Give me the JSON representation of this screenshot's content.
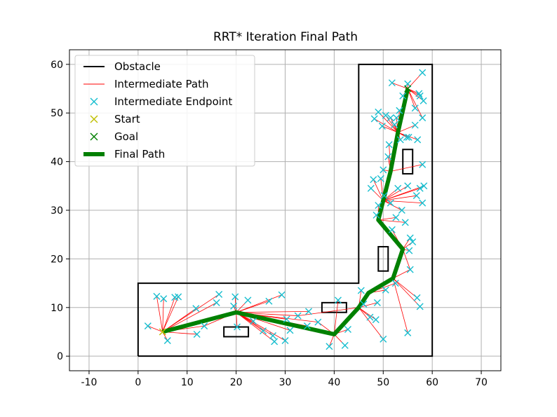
{
  "chart_data": {
    "type": "line",
    "title": "RRT* Iteration Final Path",
    "xlabel": "",
    "ylabel": "",
    "xlim": [
      -14,
      74
    ],
    "ylim": [
      -3,
      63
    ],
    "xticks": [
      -10,
      0,
      10,
      20,
      30,
      40,
      50,
      60,
      70
    ],
    "yticks": [
      0,
      10,
      20,
      30,
      40,
      50,
      60
    ],
    "grid": true,
    "legend_position": "top-left",
    "colors": {
      "obstacle": "#000000",
      "intermediate_path": "#ff0000",
      "intermediate_endpoint": "#17becf",
      "start": "#bfbf00",
      "goal": "#008000",
      "final_path": "#008000",
      "grid": "#b0b0b0"
    },
    "legend": [
      {
        "label": "Obstacle",
        "kind": "line",
        "key": "obstacle"
      },
      {
        "label": "Intermediate Path",
        "kind": "thin-line",
        "key": "intermediate_path"
      },
      {
        "label": "Intermediate Endpoint",
        "kind": "marker",
        "key": "intermediate_endpoint"
      },
      {
        "label": "Start",
        "kind": "marker",
        "key": "start"
      },
      {
        "label": "Goal",
        "kind": "marker",
        "key": "goal"
      },
      {
        "label": "Final Path",
        "kind": "thick-line",
        "key": "final_path"
      }
    ],
    "obstacles": {
      "boundary": [
        [
          0,
          0
        ],
        [
          60,
          0
        ],
        [
          60,
          60
        ],
        [
          45,
          60
        ],
        [
          45,
          15
        ],
        [
          0,
          15
        ],
        [
          0,
          0
        ]
      ],
      "rectangles": [
        [
          17.5,
          4,
          5,
          2
        ],
        [
          37.5,
          9,
          5,
          2
        ],
        [
          49,
          17.5,
          2,
          5
        ],
        [
          54,
          37.5,
          2,
          5
        ]
      ]
    },
    "start": [
      5,
      5
    ],
    "goal": [
      55,
      55
    ],
    "final_path": [
      [
        5,
        5
      ],
      [
        20,
        9
      ],
      [
        40,
        4.5
      ],
      [
        45,
        10
      ],
      [
        47,
        13
      ],
      [
        52,
        16
      ],
      [
        54,
        22
      ],
      [
        49,
        28
      ],
      [
        50,
        32
      ],
      [
        51.5,
        38
      ],
      [
        53,
        46
      ],
      [
        55,
        55
      ]
    ],
    "endpoints": [
      [
        2,
        6.2
      ],
      [
        3.8,
        12.3
      ],
      [
        5.2,
        11.8
      ],
      [
        6,
        3.2
      ],
      [
        7.5,
        12.1
      ],
      [
        8.2,
        12.2
      ],
      [
        11.8,
        9.8
      ],
      [
        12,
        4.5
      ],
      [
        13.5,
        6.2
      ],
      [
        16,
        11
      ],
      [
        16.5,
        12.7
      ],
      [
        19.5,
        10.3
      ],
      [
        19.8,
        12.2
      ],
      [
        20.2,
        6
      ],
      [
        22.4,
        11.5
      ],
      [
        23.5,
        7.2
      ],
      [
        25.5,
        5.2
      ],
      [
        26.7,
        11.3
      ],
      [
        27.5,
        4.2
      ],
      [
        27.8,
        3
      ],
      [
        29.3,
        12.6
      ],
      [
        30,
        3.2
      ],
      [
        30.3,
        7.6
      ],
      [
        31,
        5.3
      ],
      [
        32.6,
        8.3
      ],
      [
        34.5,
        6.2
      ],
      [
        34.8,
        9.2
      ],
      [
        36.7,
        7
      ],
      [
        39,
        2
      ],
      [
        40.8,
        11.5
      ],
      [
        42.2,
        2.2
      ],
      [
        42.8,
        5.5
      ],
      [
        45.5,
        13.5
      ],
      [
        46,
        10.7
      ],
      [
        47.3,
        8
      ],
      [
        48.5,
        7.5
      ],
      [
        48.8,
        11
      ],
      [
        50,
        3.5
      ],
      [
        50.5,
        13.6
      ],
      [
        52.5,
        15
      ],
      [
        55,
        4.8
      ],
      [
        55.5,
        17.8
      ],
      [
        55.3,
        21.7
      ],
      [
        56,
        23.5
      ],
      [
        56.9,
        12
      ],
      [
        57.5,
        10.2
      ],
      [
        48.6,
        29
      ],
      [
        49,
        31
      ],
      [
        49.5,
        36.5
      ],
      [
        50,
        38.3
      ],
      [
        50.2,
        33
      ],
      [
        51.5,
        31.5
      ],
      [
        52.6,
        28.5
      ],
      [
        53,
        34.5
      ],
      [
        53.8,
        30
      ],
      [
        54.5,
        27.5
      ],
      [
        55,
        35
      ],
      [
        56.8,
        33
      ],
      [
        57.5,
        34.5
      ],
      [
        58,
        31.5
      ],
      [
        58.3,
        35
      ],
      [
        51,
        41
      ],
      [
        51.2,
        43.5
      ],
      [
        52.3,
        47.6
      ],
      [
        52.7,
        49
      ],
      [
        53.5,
        44.5
      ],
      [
        54,
        53.5
      ],
      [
        54.8,
        45
      ],
      [
        55.2,
        45
      ],
      [
        56.5,
        47.5
      ],
      [
        57,
        44.5
      ],
      [
        57.5,
        53.5
      ],
      [
        58,
        39.4
      ],
      [
        58,
        49
      ],
      [
        48.2,
        48.8
      ],
      [
        49,
        50.2
      ],
      [
        49.8,
        47.3
      ],
      [
        50.5,
        49.5
      ],
      [
        51.5,
        49
      ],
      [
        51.8,
        56.2
      ],
      [
        55,
        56
      ],
      [
        53.3,
        50.5
      ],
      [
        57.3,
        54
      ],
      [
        58,
        58.3
      ],
      [
        58.2,
        52.5
      ],
      [
        47.5,
        34.5
      ],
      [
        48,
        36.3
      ],
      [
        51.8,
        26
      ],
      [
        55.5,
        24.3
      ],
      [
        56.5,
        51
      ]
    ],
    "tree_edges": [
      [
        [
          5,
          5
        ],
        [
          2,
          6.2
        ]
      ],
      [
        [
          5,
          5
        ],
        [
          3.8,
          12.3
        ]
      ],
      [
        [
          5,
          5
        ],
        [
          5.2,
          11.8
        ]
      ],
      [
        [
          5,
          5
        ],
        [
          6,
          3.2
        ]
      ],
      [
        [
          5,
          5
        ],
        [
          7.5,
          12.1
        ]
      ],
      [
        [
          5,
          5
        ],
        [
          8.2,
          12.2
        ]
      ],
      [
        [
          5,
          5
        ],
        [
          12,
          4.5
        ]
      ],
      [
        [
          5,
          5
        ],
        [
          11.8,
          9.8
        ]
      ],
      [
        [
          5,
          5
        ],
        [
          13.5,
          6.2
        ]
      ],
      [
        [
          5,
          5
        ],
        [
          16,
          11
        ]
      ],
      [
        [
          5,
          5
        ],
        [
          16.5,
          12.7
        ]
      ],
      [
        [
          20,
          9
        ],
        [
          19.5,
          10.3
        ]
      ],
      [
        [
          20,
          9
        ],
        [
          19.8,
          12.2
        ]
      ],
      [
        [
          20,
          9
        ],
        [
          20.2,
          6
        ]
      ],
      [
        [
          20,
          9
        ],
        [
          22.4,
          11.5
        ]
      ],
      [
        [
          20,
          9
        ],
        [
          23.5,
          7.2
        ]
      ],
      [
        [
          20,
          9
        ],
        [
          25.5,
          5.2
        ]
      ],
      [
        [
          20,
          9
        ],
        [
          26.7,
          11.3
        ]
      ],
      [
        [
          20,
          9
        ],
        [
          27.5,
          4.2
        ]
      ],
      [
        [
          20,
          9
        ],
        [
          27.8,
          3
        ]
      ],
      [
        [
          20,
          9
        ],
        [
          29.3,
          12.6
        ]
      ],
      [
        [
          20,
          9
        ],
        [
          30,
          3.2
        ]
      ],
      [
        [
          20,
          9
        ],
        [
          31,
          5.3
        ]
      ],
      [
        [
          20,
          9
        ],
        [
          30.3,
          7.6
        ]
      ],
      [
        [
          20,
          9
        ],
        [
          32.6,
          8.3
        ]
      ],
      [
        [
          20,
          9
        ],
        [
          34.5,
          6.2
        ]
      ],
      [
        [
          20,
          9
        ],
        [
          34.8,
          9.2
        ]
      ],
      [
        [
          20,
          9
        ],
        [
          36.7,
          7
        ]
      ],
      [
        [
          20,
          9
        ],
        [
          13.5,
          6.2
        ]
      ],
      [
        [
          40,
          4.5
        ],
        [
          39,
          2
        ]
      ],
      [
        [
          40,
          4.5
        ],
        [
          40.8,
          11.5
        ]
      ],
      [
        [
          40,
          4.5
        ],
        [
          42.2,
          2.2
        ]
      ],
      [
        [
          40,
          4.5
        ],
        [
          42.8,
          5.5
        ]
      ],
      [
        [
          40,
          4.5
        ],
        [
          36.7,
          7
        ]
      ],
      [
        [
          45,
          10
        ],
        [
          45.5,
          13.5
        ]
      ],
      [
        [
          45,
          10
        ],
        [
          46,
          10.7
        ]
      ],
      [
        [
          45,
          10
        ],
        [
          47.3,
          8
        ]
      ],
      [
        [
          45,
          10
        ],
        [
          48.5,
          7.5
        ]
      ],
      [
        [
          45,
          10
        ],
        [
          48.8,
          11
        ]
      ],
      [
        [
          45,
          10
        ],
        [
          50,
          3.5
        ]
      ],
      [
        [
          45,
          10
        ],
        [
          32.6,
          8.3
        ]
      ],
      [
        [
          47,
          13
        ],
        [
          50.5,
          13.6
        ]
      ],
      [
        [
          47,
          13
        ],
        [
          52.5,
          15
        ]
      ],
      [
        [
          52,
          16
        ],
        [
          55,
          4.8
        ]
      ],
      [
        [
          52,
          16
        ],
        [
          55.5,
          17.8
        ]
      ],
      [
        [
          52,
          16
        ],
        [
          56.9,
          12
        ]
      ],
      [
        [
          52,
          16
        ],
        [
          57.5,
          10.2
        ]
      ],
      [
        [
          54,
          22
        ],
        [
          55.3,
          21.7
        ]
      ],
      [
        [
          54,
          22
        ],
        [
          56,
          23.5
        ]
      ],
      [
        [
          54,
          22
        ],
        [
          55.5,
          24.3
        ]
      ],
      [
        [
          54,
          22
        ],
        [
          51.8,
          26
        ]
      ],
      [
        [
          49,
          28
        ],
        [
          48.6,
          29
        ]
      ],
      [
        [
          49,
          28
        ],
        [
          49,
          31
        ]
      ],
      [
        [
          49,
          28
        ],
        [
          52.6,
          28.5
        ]
      ],
      [
        [
          49,
          28
        ],
        [
          54.5,
          27.5
        ]
      ],
      [
        [
          50,
          32
        ],
        [
          50.2,
          33
        ]
      ],
      [
        [
          50,
          32
        ],
        [
          51.5,
          31.5
        ]
      ],
      [
        [
          50,
          32
        ],
        [
          53.8,
          30
        ]
      ],
      [
        [
          50,
          32
        ],
        [
          53,
          34.5
        ]
      ],
      [
        [
          50,
          32
        ],
        [
          47.5,
          34.5
        ]
      ],
      [
        [
          50,
          32
        ],
        [
          48,
          36.3
        ]
      ],
      [
        [
          50,
          32
        ],
        [
          49.5,
          36.5
        ]
      ],
      [
        [
          50,
          32
        ],
        [
          55,
          35
        ]
      ],
      [
        [
          50,
          32
        ],
        [
          56.8,
          33
        ]
      ],
      [
        [
          50,
          32
        ],
        [
          57.5,
          34.5
        ]
      ],
      [
        [
          50,
          32
        ],
        [
          58,
          31.5
        ]
      ],
      [
        [
          50,
          32
        ],
        [
          58.3,
          35
        ]
      ],
      [
        [
          51.5,
          38
        ],
        [
          50,
          38.3
        ]
      ],
      [
        [
          51.5,
          38
        ],
        [
          51,
          41
        ]
      ],
      [
        [
          51.5,
          38
        ],
        [
          51.2,
          43.5
        ]
      ],
      [
        [
          51.5,
          38
        ],
        [
          58,
          39.4
        ]
      ],
      [
        [
          53,
          46
        ],
        [
          53.5,
          44.5
        ]
      ],
      [
        [
          53,
          46
        ],
        [
          54.8,
          45
        ]
      ],
      [
        [
          53,
          46
        ],
        [
          55.2,
          45
        ]
      ],
      [
        [
          53,
          46
        ],
        [
          57,
          44.5
        ]
      ],
      [
        [
          53,
          46
        ],
        [
          56.5,
          47.5
        ]
      ],
      [
        [
          53,
          46
        ],
        [
          52.3,
          47.6
        ]
      ],
      [
        [
          53,
          46
        ],
        [
          52.7,
          49
        ]
      ],
      [
        [
          53,
          46
        ],
        [
          48.2,
          48.8
        ]
      ],
      [
        [
          53,
          46
        ],
        [
          49,
          50.2
        ]
      ],
      [
        [
          53,
          46
        ],
        [
          49.8,
          47.3
        ]
      ],
      [
        [
          53,
          46
        ],
        [
          50.5,
          49.5
        ]
      ],
      [
        [
          53,
          46
        ],
        [
          51.5,
          49
        ]
      ],
      [
        [
          53,
          46
        ],
        [
          53.3,
          50.5
        ]
      ],
      [
        [
          55,
          55
        ],
        [
          54,
          53.5
        ]
      ],
      [
        [
          55,
          55
        ],
        [
          55,
          56
        ]
      ],
      [
        [
          55,
          55
        ],
        [
          51.8,
          56.2
        ]
      ],
      [
        [
          55,
          55
        ],
        [
          57.3,
          54
        ]
      ],
      [
        [
          55,
          55
        ],
        [
          58,
          58.3
        ]
      ],
      [
        [
          55,
          55
        ],
        [
          58.2,
          52.5
        ]
      ],
      [
        [
          55,
          55
        ],
        [
          58,
          49
        ]
      ],
      [
        [
          55,
          55
        ],
        [
          56.5,
          51
        ]
      ],
      [
        [
          55,
          55
        ],
        [
          57.5,
          53.5
        ]
      ],
      [
        [
          54,
          22
        ],
        [
          55.5,
          17.8
        ]
      ],
      [
        [
          52,
          16
        ],
        [
          54,
          22
        ]
      ]
    ]
  }
}
